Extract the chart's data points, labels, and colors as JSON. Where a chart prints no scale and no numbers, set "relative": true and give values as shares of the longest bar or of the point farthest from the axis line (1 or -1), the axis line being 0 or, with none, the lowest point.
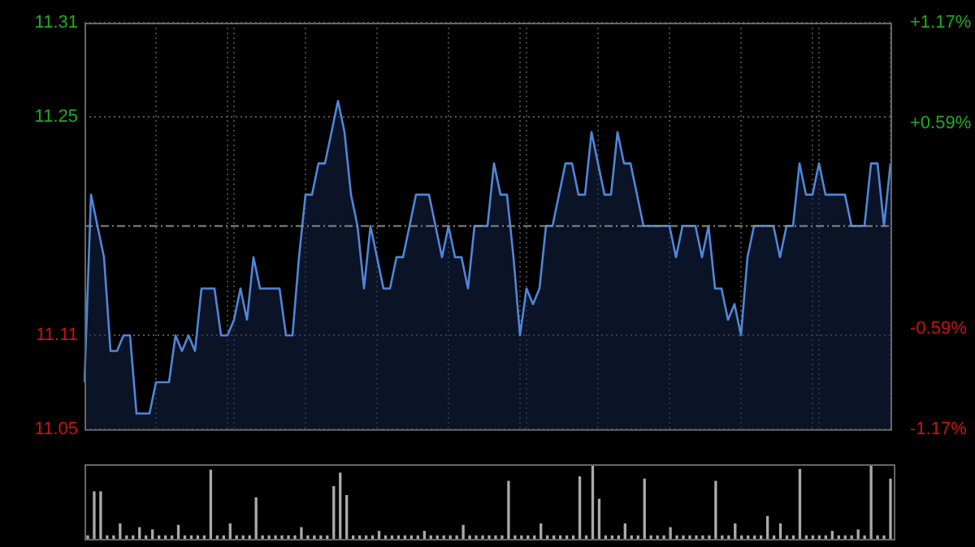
{
  "chart_data": [
    {
      "type": "area",
      "categories": [
        null,
        null,
        null,
        null,
        null,
        null,
        null,
        null,
        null,
        null,
        null,
        null,
        null,
        null,
        null,
        null,
        null,
        null,
        null,
        null,
        null,
        null,
        null,
        null,
        null,
        null,
        null,
        null,
        null,
        null,
        null,
        null,
        null,
        null,
        null,
        null,
        null,
        null,
        null,
        null,
        null,
        null,
        null,
        null,
        null,
        null,
        null,
        null,
        null,
        null,
        null,
        null,
        null,
        null,
        null,
        null,
        null,
        null,
        null,
        null,
        null,
        null,
        null,
        null,
        null,
        null,
        null,
        null,
        null,
        null,
        null,
        null,
        null,
        null,
        null,
        null,
        null,
        null,
        null,
        null,
        null,
        null,
        null,
        null,
        null,
        null,
        null,
        null,
        null,
        null,
        null,
        null,
        null,
        null,
        null,
        null,
        null,
        null,
        null,
        null,
        null,
        null,
        null,
        null,
        null,
        null,
        null,
        null,
        null,
        null,
        null,
        null,
        null,
        null,
        null,
        null,
        null,
        null,
        null,
        null,
        null,
        null,
        null,
        null,
        null
      ],
      "series": [
        {
          "color": "#4f86d8",
          "values": [
            11.08,
            11.2,
            11.18,
            11.16,
            11.1,
            11.1,
            11.11,
            11.11,
            11.06,
            11.06,
            11.06,
            11.08,
            11.08,
            11.08,
            11.11,
            11.1,
            11.11,
            11.1,
            11.14,
            11.14,
            11.14,
            11.11,
            11.11,
            11.12,
            11.14,
            11.12,
            11.16,
            11.14,
            11.14,
            11.14,
            11.14,
            11.11,
            11.11,
            11.16,
            11.2,
            11.2,
            11.22,
            11.22,
            11.24,
            11.26,
            11.24,
            11.2,
            11.18,
            11.14,
            11.18,
            11.16,
            11.14,
            11.14,
            11.16,
            11.16,
            11.18,
            11.2,
            11.2,
            11.2,
            11.18,
            11.16,
            11.18,
            11.16,
            11.16,
            11.14,
            11.18,
            11.18,
            11.18,
            11.22,
            11.2,
            11.2,
            11.16,
            11.11,
            11.14,
            11.13,
            11.14,
            11.18,
            11.18,
            11.2,
            11.22,
            11.22,
            11.2,
            11.2,
            11.24,
            11.22,
            11.2,
            11.2,
            11.24,
            11.22,
            11.22,
            11.2,
            11.18,
            11.18,
            11.18,
            11.18,
            11.18,
            11.16,
            11.18,
            11.18,
            11.18,
            11.16,
            11.18,
            11.14,
            11.14,
            11.12,
            11.13,
            11.11,
            11.16,
            11.18,
            11.18,
            11.18,
            11.18,
            11.16,
            11.18,
            11.18,
            11.22,
            11.2,
            11.2,
            11.22,
            11.2,
            11.2,
            11.2,
            11.2,
            11.18,
            11.18,
            11.18,
            11.22,
            11.22,
            11.18,
            11.22
          ]
        }
      ],
      "ylim": [
        11.05,
        11.31
      ],
      "yticks": [
        11.05,
        11.11,
        11.25,
        11.31
      ],
      "y2lim": [
        -1.17,
        1.17
      ],
      "y2ticks": [
        {
          "value": -1.17,
          "label": "-1.17%"
        },
        {
          "value": -0.59,
          "label": "-0.59%"
        },
        {
          "value": 0.59,
          "label": "+0.59%"
        },
        {
          "value": 1.17,
          "label": "+1.17%"
        }
      ],
      "ref_lines": [
        {
          "axis": "y",
          "value": 11.18,
          "line_style": "dashed",
          "color": "#888888"
        }
      ],
      "grid": true,
      "legend": false,
      "marker": "none",
      "line_style": "solid",
      "tick_labels": "y"
    },
    {
      "type": "bar",
      "relative": true,
      "tick_labels": false,
      "legend": false,
      "categories": [
        null,
        null,
        null,
        null,
        null,
        null,
        null,
        null,
        null,
        null,
        null,
        null,
        null,
        null,
        null,
        null,
        null,
        null,
        null,
        null,
        null,
        null,
        null,
        null,
        null,
        null,
        null,
        null,
        null,
        null,
        null,
        null,
        null,
        null,
        null,
        null,
        null,
        null,
        null,
        null,
        null,
        null,
        null,
        null,
        null,
        null,
        null,
        null,
        null,
        null,
        null,
        null,
        null,
        null,
        null,
        null,
        null,
        null,
        null,
        null,
        null,
        null,
        null,
        null,
        null,
        null,
        null,
        null,
        null,
        null,
        null,
        null,
        null,
        null,
        null,
        null,
        null,
        null,
        null,
        null,
        null,
        null,
        null,
        null,
        null,
        null,
        null,
        null,
        null,
        null,
        null,
        null,
        null,
        null,
        null,
        null,
        null,
        null,
        null,
        null,
        null,
        null,
        null,
        null,
        null,
        null,
        null,
        null,
        null,
        null,
        null,
        null,
        null,
        null,
        null,
        null,
        null,
        null,
        null,
        null,
        null,
        null,
        null,
        null,
        null
      ],
      "color": "#aaaaaa",
      "values": [
        0.04,
        0.63,
        0.63,
        0.04,
        0.04,
        0.2,
        0.04,
        0.04,
        0.15,
        0.04,
        0.12,
        0.04,
        0.04,
        0.04,
        0.18,
        0.04,
        0.04,
        0.04,
        0.04,
        0.92,
        0.04,
        0.04,
        0.2,
        0.04,
        0.04,
        0.04,
        0.55,
        0.04,
        0.04,
        0.04,
        0.04,
        0.04,
        0.04,
        0.15,
        0.04,
        0.04,
        0.04,
        0.04,
        0.7,
        0.88,
        0.58,
        0.04,
        0.04,
        0.04,
        0.04,
        0.1,
        0.04,
        0.04,
        0.04,
        0.04,
        0.04,
        0.04,
        0.1,
        0.04,
        0.04,
        0.04,
        0.04,
        0.04,
        0.18,
        0.04,
        0.04,
        0.04,
        0.04,
        0.04,
        0.04,
        0.77,
        0.04,
        0.04,
        0.04,
        0.04,
        0.2,
        0.04,
        0.04,
        0.04,
        0.04,
        0.04,
        0.83,
        0.04,
        1,
        0.53,
        0.04,
        0.04,
        0.04,
        0.2,
        0.04,
        0.04,
        0.8,
        0.04,
        0.04,
        0.04,
        0.15,
        0.04,
        0.04,
        0.04,
        0.04,
        0.04,
        0.04,
        0.77,
        0.04,
        0.04,
        0.2,
        0.04,
        0.04,
        0.04,
        0.04,
        0.3,
        0.04,
        0.2,
        0.04,
        0.04,
        0.93,
        0.04,
        0.04,
        0.04,
        0.04,
        0.1,
        0.04,
        0.04,
        0.04,
        0.12,
        0.04,
        0.98,
        0.04,
        0.04,
        0.8
      ]
    }
  ]
}
